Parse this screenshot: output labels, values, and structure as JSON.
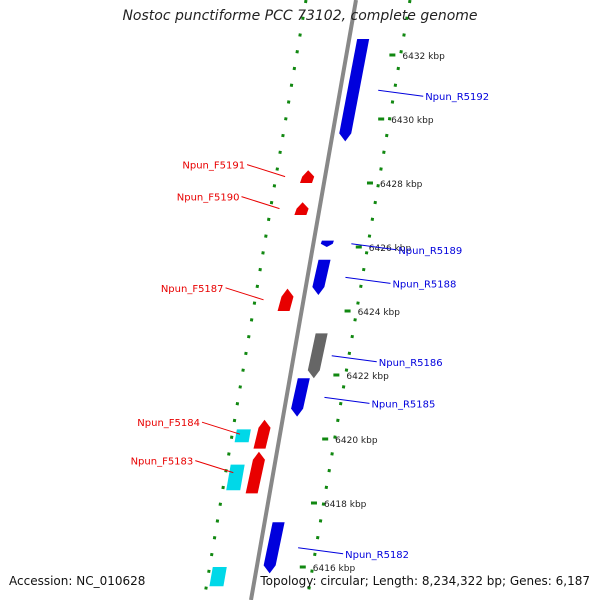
{
  "title": "Nostoc punctiforme PCC 73102, complete genome",
  "footer": {
    "accession": "Accession: NC_010628",
    "summary": "Topology: circular; Length: 8,234,322 bp; Genes: 6,187"
  },
  "colors": {
    "forward": "#e80000",
    "reverse": "#0000dd",
    "other": "#666666",
    "rna": "#00d8e8",
    "ticks": "#118811",
    "backbone": "#888888"
  },
  "ticks": [
    {
      "label": "6432 kbp",
      "kbp": 6432
    },
    {
      "label": "6430 kbp",
      "kbp": 6430
    },
    {
      "label": "6428 kbp",
      "kbp": 6428
    },
    {
      "label": "6426 kbp",
      "kbp": 6426
    },
    {
      "label": "6424 kbp",
      "kbp": 6424
    },
    {
      "label": "6422 kbp",
      "kbp": 6422
    },
    {
      "label": "6420 kbp",
      "kbp": 6420
    },
    {
      "label": "6418 kbp",
      "kbp": 6418
    },
    {
      "label": "6416 kbp",
      "kbp": 6416
    }
  ],
  "genes": [
    {
      "label": "Npun_R5192",
      "strand": "reverse",
      "start_kbp": 6429.3,
      "end_kbp": 6432.5,
      "track": "inner"
    },
    {
      "label": "Npun_F5191",
      "strand": "forward",
      "start_kbp": 6428.0,
      "end_kbp": 6428.4,
      "track": "outer"
    },
    {
      "label": "Npun_F5190",
      "strand": "forward",
      "start_kbp": 6427.0,
      "end_kbp": 6427.4,
      "track": "outer"
    },
    {
      "label": "Npun_R5189",
      "strand": "reverse",
      "start_kbp": 6426.0,
      "end_kbp": 6426.2,
      "track": "inner"
    },
    {
      "label": "Npun_R5188",
      "strand": "reverse",
      "start_kbp": 6424.5,
      "end_kbp": 6425.6,
      "track": "inner"
    },
    {
      "label": "Npun_F5187",
      "strand": "forward",
      "start_kbp": 6424.0,
      "end_kbp": 6424.7,
      "track": "outer"
    },
    {
      "label": "Npun_R5186",
      "strand": "other",
      "start_kbp": 6421.9,
      "end_kbp": 6423.3,
      "track": "inner2"
    },
    {
      "label": "Npun_R5185",
      "strand": "reverse",
      "start_kbp": 6420.7,
      "end_kbp": 6421.9,
      "track": "inner"
    },
    {
      "label": "Npun_F5184",
      "strand": "forward",
      "start_kbp": 6419.7,
      "end_kbp": 6420.6,
      "track": "outer"
    },
    {
      "label": "Npun_F5183",
      "strand": "forward",
      "start_kbp": 6418.3,
      "end_kbp": 6419.6,
      "track": "outer"
    },
    {
      "label": "Npun_R5182",
      "strand": "reverse",
      "start_kbp": 6415.8,
      "end_kbp": 6417.4,
      "track": "inner"
    }
  ]
}
